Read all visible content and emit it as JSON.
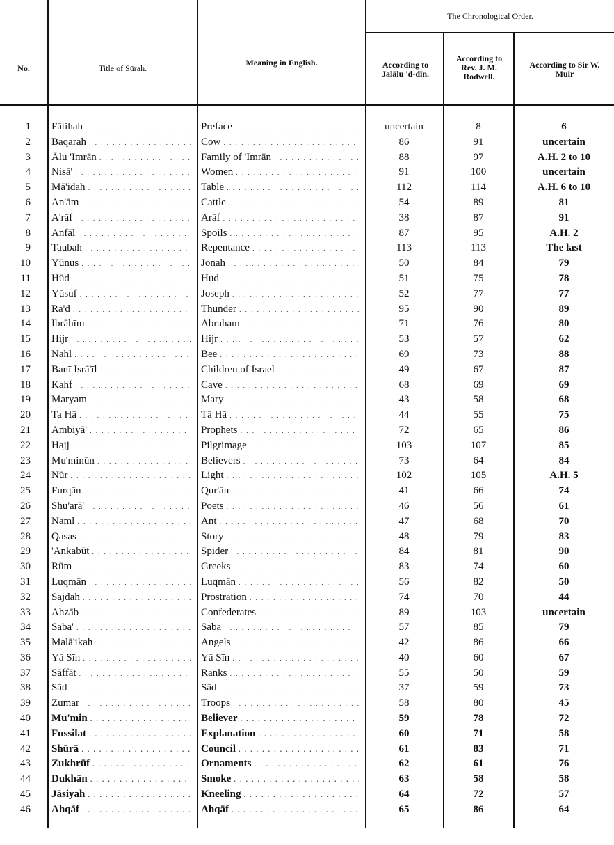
{
  "header": {
    "no": "No.",
    "title": "Title of Sūrah.",
    "meaning": "Meaning in English.",
    "chronological": "The Chronological Order.",
    "jalal": "According to Jalālu 'd-dīn.",
    "rodwell": "According to Rev. J. M. Rodwell.",
    "muir": "According to Sir W. Muir"
  },
  "rows": [
    [
      "1",
      "Fātihah",
      "Preface",
      "uncertain",
      "8",
      "6"
    ],
    [
      "2",
      "Baqarah",
      "Cow",
      "86",
      "91",
      "uncertain"
    ],
    [
      "3",
      "Ālu 'Imrān",
      "Family of 'Imrān",
      "88",
      "97",
      "A.H. 2 to 10"
    ],
    [
      "4",
      "Nisā'",
      "Women",
      "91",
      "100",
      "uncertain"
    ],
    [
      "5",
      "Mā'idah",
      "Table",
      "112",
      "114",
      "A.H. 6 to 10"
    ],
    [
      "6",
      "An'ām",
      "Cattle",
      "54",
      "89",
      "81"
    ],
    [
      "7",
      "A'rāf",
      "Arāf",
      "38",
      "87",
      "91"
    ],
    [
      "8",
      "Anfāl",
      "Spoils",
      "87",
      "95",
      "A.H. 2"
    ],
    [
      "9",
      "Taubah",
      "Repentance",
      "113",
      "113",
      "The last"
    ],
    [
      "10",
      "Yūnus",
      "Jonah",
      "50",
      "84",
      "79"
    ],
    [
      "11",
      "Hūd",
      "Hud",
      "51",
      "75",
      "78"
    ],
    [
      "12",
      "Yūsuf",
      "Joseph",
      "52",
      "77",
      "77"
    ],
    [
      "13",
      "Ra'd",
      "Thunder",
      "95",
      "90",
      "89"
    ],
    [
      "14",
      "Ibrāhīm",
      "Abraham",
      "71",
      "76",
      "80"
    ],
    [
      "15",
      "Hijr",
      "Hijr",
      "53",
      "57",
      "62"
    ],
    [
      "16",
      "Nahl",
      "Bee",
      "69",
      "73",
      "88"
    ],
    [
      "17",
      "Banī Isrā'īl",
      "Children of Israel",
      "49",
      "67",
      "87"
    ],
    [
      "18",
      "Kahf",
      "Cave",
      "68",
      "69",
      "69"
    ],
    [
      "19",
      "Maryam",
      "Mary",
      "43",
      "58",
      "68"
    ],
    [
      "20",
      "Ta Hā",
      "Tā Hā",
      "44",
      "55",
      "75"
    ],
    [
      "21",
      "Ambiyā'",
      "Prophets",
      "72",
      "65",
      "86"
    ],
    [
      "22",
      "Hajj",
      "Pilgrimage",
      "103",
      "107",
      "85"
    ],
    [
      "23",
      "Mu'minūn",
      "Believers",
      "73",
      "64",
      "84"
    ],
    [
      "24",
      "Nūr",
      "Light",
      "102",
      "105",
      "A.H. 5"
    ],
    [
      "25",
      "Furqān",
      "Qur'ān",
      "41",
      "66",
      "74"
    ],
    [
      "26",
      "Shu'arā'",
      "Poets",
      "46",
      "56",
      "61"
    ],
    [
      "27",
      "Naml",
      "Ant",
      "47",
      "68",
      "70"
    ],
    [
      "28",
      "Qasas",
      "Story",
      "48",
      "79",
      "83"
    ],
    [
      "29",
      "'Ankabūt",
      "Spider",
      "84",
      "81",
      "90"
    ],
    [
      "30",
      "Rūm",
      "Greeks",
      "83",
      "74",
      "60"
    ],
    [
      "31",
      "Luqmān",
      "Luqmān",
      "56",
      "82",
      "50"
    ],
    [
      "32",
      "Sajdah",
      "Prostration",
      "74",
      "70",
      "44"
    ],
    [
      "33",
      "Ahzāb",
      "Confederates",
      "89",
      "103",
      "uncertain"
    ],
    [
      "34",
      "Saba'",
      "Saba",
      "57",
      "85",
      "79"
    ],
    [
      "35",
      "Malā'ikah",
      "Angels",
      "42",
      "86",
      "66"
    ],
    [
      "36",
      "Yā Sīn",
      "Yā Sīn",
      "40",
      "60",
      "67"
    ],
    [
      "37",
      "Sāffāt",
      "Ranks",
      "55",
      "50",
      "59"
    ],
    [
      "38",
      "Sād",
      "Sād",
      "37",
      "59",
      "73"
    ],
    [
      "39",
      "Zumar",
      "Troops",
      "58",
      "80",
      "45"
    ],
    [
      "40",
      "Mu'min",
      "Believer",
      "59",
      "78",
      "72"
    ],
    [
      "41",
      "Fussilat",
      "Explanation",
      "60",
      "71",
      "58"
    ],
    [
      "42",
      "Shūrā",
      "Council",
      "61",
      "83",
      "71"
    ],
    [
      "43",
      "Zukhrūf",
      "Ornaments",
      "62",
      "61",
      "76"
    ],
    [
      "44",
      "Dukhān",
      "Smoke",
      "63",
      "58",
      "58"
    ],
    [
      "45",
      "Jāsiyah",
      "Kneeling",
      "64",
      "72",
      "57"
    ],
    [
      "46",
      "Ahqāf",
      "Ahqāf",
      "65",
      "86",
      "64"
    ]
  ]
}
